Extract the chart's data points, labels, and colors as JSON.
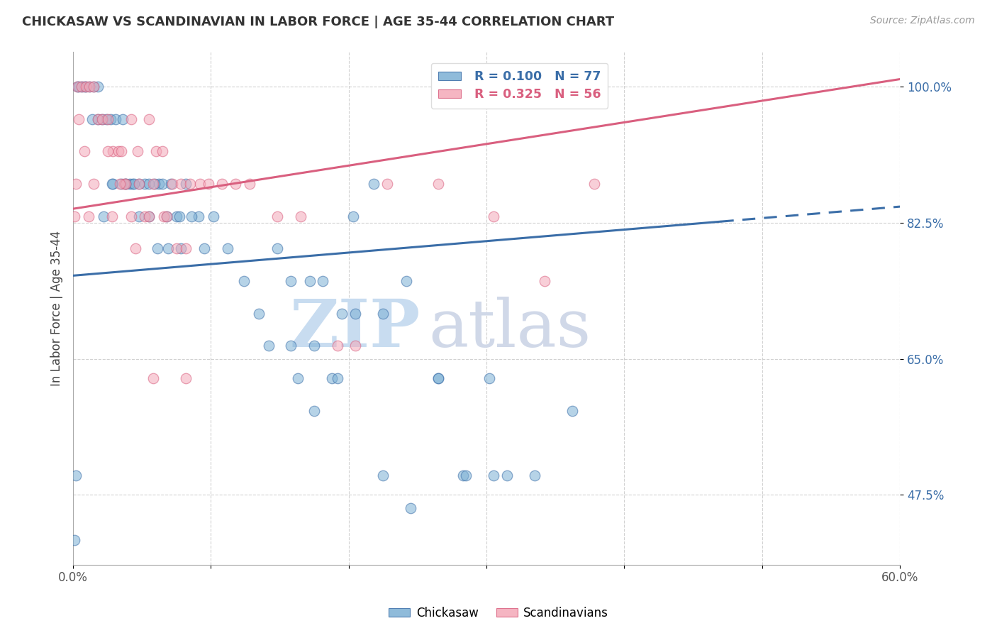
{
  "title": "CHICKASAW VS SCANDINAVIAN IN LABOR FORCE | AGE 35-44 CORRELATION CHART",
  "source_text": "Source: ZipAtlas.com",
  "ylabel": "In Labor Force | Age 35-44",
  "xlim": [
    0.0,
    0.6
  ],
  "ylim": [
    0.385,
    1.045
  ],
  "xticks": [
    0.0,
    0.1,
    0.2,
    0.3,
    0.4,
    0.5,
    0.6
  ],
  "xticklabels": [
    "0.0%",
    "",
    "",
    "",
    "",
    "",
    "60.0%"
  ],
  "yticks": [
    0.475,
    0.65,
    0.825,
    1.0
  ],
  "yticklabels": [
    "47.5%",
    "65.0%",
    "82.5%",
    "100.0%"
  ],
  "blue_color": "#7BAFD4",
  "pink_color": "#F4A8B8",
  "trend_blue": "#3B6EA8",
  "trend_pink": "#D95F7F",
  "watermark_zip": "ZIP",
  "watermark_atlas": "atlas",
  "blue_trend_x_solid_end": 0.47,
  "blue_trend_x_dashed_start": 0.47,
  "blue_trend_intercept": 0.757,
  "blue_trend_slope": 0.148,
  "pink_trend_intercept": 0.843,
  "pink_trend_slope": 0.278,
  "chickasaw_x": [
    0.003,
    0.006,
    0.008,
    0.012,
    0.015,
    0.018,
    0.009,
    0.004,
    0.021,
    0.024,
    0.027,
    0.018,
    0.014,
    0.031,
    0.036,
    0.029,
    0.022,
    0.041,
    0.043,
    0.038,
    0.035,
    0.028,
    0.052,
    0.055,
    0.048,
    0.044,
    0.038,
    0.062,
    0.065,
    0.059,
    0.055,
    0.048,
    0.071,
    0.075,
    0.068,
    0.061,
    0.082,
    0.077,
    0.069,
    0.091,
    0.086,
    0.078,
    0.102,
    0.095,
    0.112,
    0.124,
    0.135,
    0.148,
    0.142,
    0.158,
    0.163,
    0.172,
    0.175,
    0.181,
    0.188,
    0.195,
    0.203,
    0.218,
    0.225,
    0.242,
    0.265,
    0.283,
    0.302,
    0.315,
    0.335,
    0.362,
    0.158,
    0.175,
    0.192,
    0.205,
    0.225,
    0.245,
    0.265,
    0.285,
    0.305,
    0.002,
    0.001
  ],
  "chickasaw_y": [
    1.0,
    1.0,
    1.0,
    1.0,
    1.0,
    1.0,
    1.0,
    1.0,
    0.958,
    0.958,
    0.958,
    0.958,
    0.958,
    0.958,
    0.958,
    0.875,
    0.833,
    0.875,
    0.875,
    0.875,
    0.875,
    0.875,
    0.875,
    0.875,
    0.875,
    0.875,
    0.875,
    0.875,
    0.875,
    0.875,
    0.833,
    0.833,
    0.875,
    0.833,
    0.833,
    0.792,
    0.875,
    0.833,
    0.792,
    0.833,
    0.833,
    0.792,
    0.833,
    0.792,
    0.792,
    0.75,
    0.708,
    0.792,
    0.667,
    0.75,
    0.625,
    0.75,
    0.583,
    0.75,
    0.625,
    0.708,
    0.833,
    0.875,
    0.708,
    0.75,
    0.625,
    0.5,
    0.625,
    0.5,
    0.5,
    0.583,
    0.667,
    0.667,
    0.625,
    0.708,
    0.5,
    0.458,
    0.625,
    0.5,
    0.5,
    0.5,
    0.417
  ],
  "scandinavian_x": [
    0.003,
    0.006,
    0.009,
    0.012,
    0.015,
    0.018,
    0.004,
    0.008,
    0.021,
    0.025,
    0.029,
    0.033,
    0.037,
    0.015,
    0.011,
    0.042,
    0.047,
    0.038,
    0.034,
    0.028,
    0.055,
    0.06,
    0.048,
    0.042,
    0.065,
    0.058,
    0.052,
    0.045,
    0.072,
    0.066,
    0.055,
    0.078,
    0.068,
    0.085,
    0.075,
    0.092,
    0.082,
    0.098,
    0.108,
    0.118,
    0.128,
    0.148,
    0.165,
    0.192,
    0.205,
    0.228,
    0.265,
    0.305,
    0.342,
    0.378,
    0.002,
    0.001,
    0.025,
    0.035,
    0.058,
    0.082
  ],
  "scandinavian_y": [
    1.0,
    1.0,
    1.0,
    1.0,
    1.0,
    0.958,
    0.958,
    0.917,
    0.958,
    0.958,
    0.917,
    0.917,
    0.875,
    0.875,
    0.833,
    0.958,
    0.917,
    0.875,
    0.875,
    0.833,
    0.958,
    0.917,
    0.875,
    0.833,
    0.917,
    0.875,
    0.833,
    0.792,
    0.875,
    0.833,
    0.833,
    0.875,
    0.833,
    0.875,
    0.792,
    0.875,
    0.792,
    0.875,
    0.875,
    0.875,
    0.875,
    0.833,
    0.833,
    0.667,
    0.667,
    0.875,
    0.875,
    0.833,
    0.75,
    0.875,
    0.875,
    0.833,
    0.917,
    0.917,
    0.625,
    0.625
  ]
}
